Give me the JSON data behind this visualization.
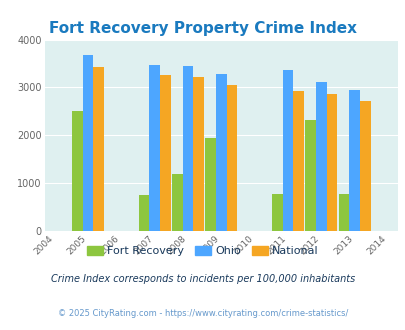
{
  "title": "Fort Recovery Property Crime Index",
  "years": [
    2005,
    2007,
    2008,
    2009,
    2011,
    2012,
    2013
  ],
  "fort_recovery": [
    2500,
    750,
    1200,
    1950,
    780,
    2330,
    780
  ],
  "ohio": [
    3670,
    3460,
    3440,
    3280,
    3360,
    3110,
    2940
  ],
  "national": [
    3420,
    3270,
    3210,
    3050,
    2920,
    2860,
    2710
  ],
  "xticks": [
    2004,
    2005,
    2006,
    2007,
    2008,
    2009,
    2010,
    2011,
    2012,
    2013,
    2014
  ],
  "ylim": [
    0,
    4000
  ],
  "yticks": [
    0,
    1000,
    2000,
    3000,
    4000
  ],
  "color_fr": "#8dc63f",
  "color_ohio": "#4da6ff",
  "color_national": "#f5a623",
  "title_color": "#1a7abf",
  "bg_color": "#dff0f0",
  "legend_labels": [
    "Fort Recovery",
    "Ohio",
    "National"
  ],
  "note_text": "Crime Index corresponds to incidents per 100,000 inhabitants",
  "copyright_text": "© 2025 CityRating.com - https://www.cityrating.com/crime-statistics/",
  "note_color": "#1a3a5c",
  "copyright_color": "#6699cc",
  "bar_width": 0.32
}
